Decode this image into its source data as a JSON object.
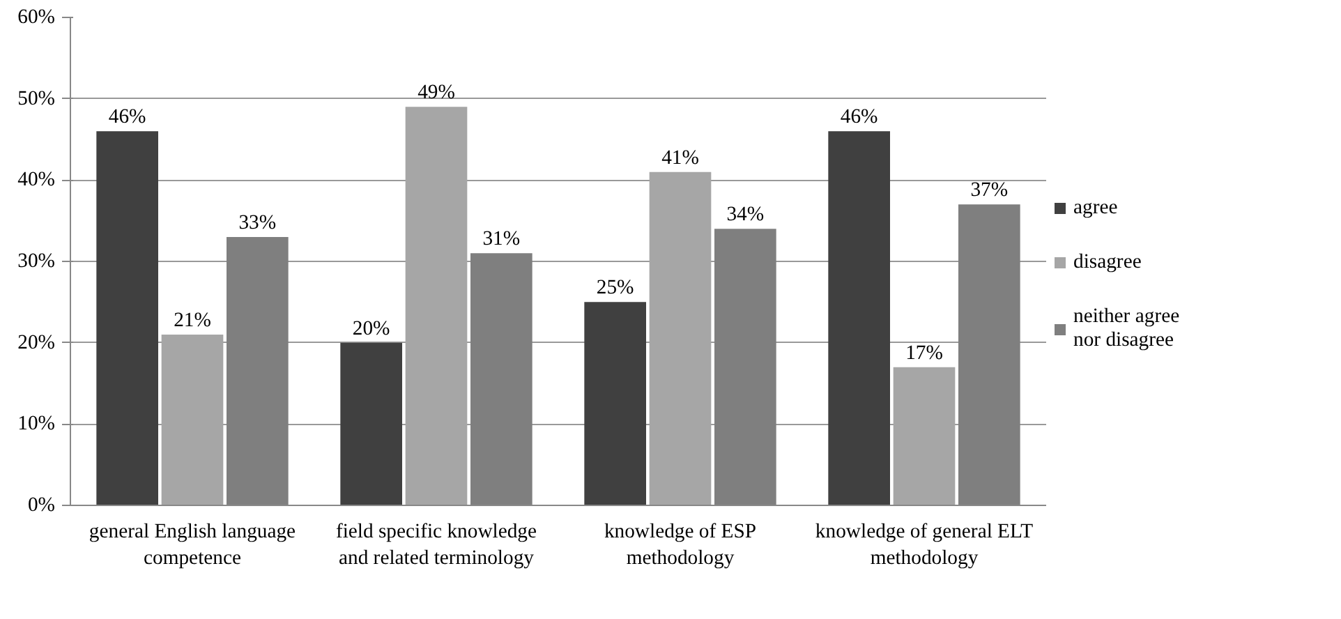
{
  "chart_data": {
    "type": "bar",
    "categories": [
      "general English language competence",
      "field specific knowledge and related terminology",
      "knowledge of ESP methodology",
      "knowledge of general ELT methodology"
    ],
    "series": [
      {
        "name": "agree",
        "color": "#404040",
        "values": [
          46,
          20,
          25,
          46
        ],
        "value_labels": [
          "46%",
          "20%",
          "25%",
          "46%"
        ]
      },
      {
        "name": "disagree",
        "color": "#a6a6a6",
        "values": [
          21,
          49,
          41,
          17
        ],
        "value_labels": [
          "21%",
          "49%",
          "41%",
          "17%"
        ]
      },
      {
        "name": "neither agree nor disagree",
        "color": "#7f7f7f",
        "values": [
          33,
          31,
          34,
          37
        ],
        "value_labels": [
          "33%",
          "31%",
          "34%",
          "37%"
        ]
      }
    ],
    "ylim": [
      0,
      60
    ],
    "yticks": [
      {
        "value": 0,
        "label": "0%"
      },
      {
        "value": 10,
        "label": "10%"
      },
      {
        "value": 20,
        "label": "20%"
      },
      {
        "value": 30,
        "label": "30%"
      },
      {
        "value": 40,
        "label": "40%"
      },
      {
        "value": 50,
        "label": "50%"
      },
      {
        "value": 60,
        "label": "60%"
      }
    ],
    "grid": "y",
    "legend": "right"
  }
}
